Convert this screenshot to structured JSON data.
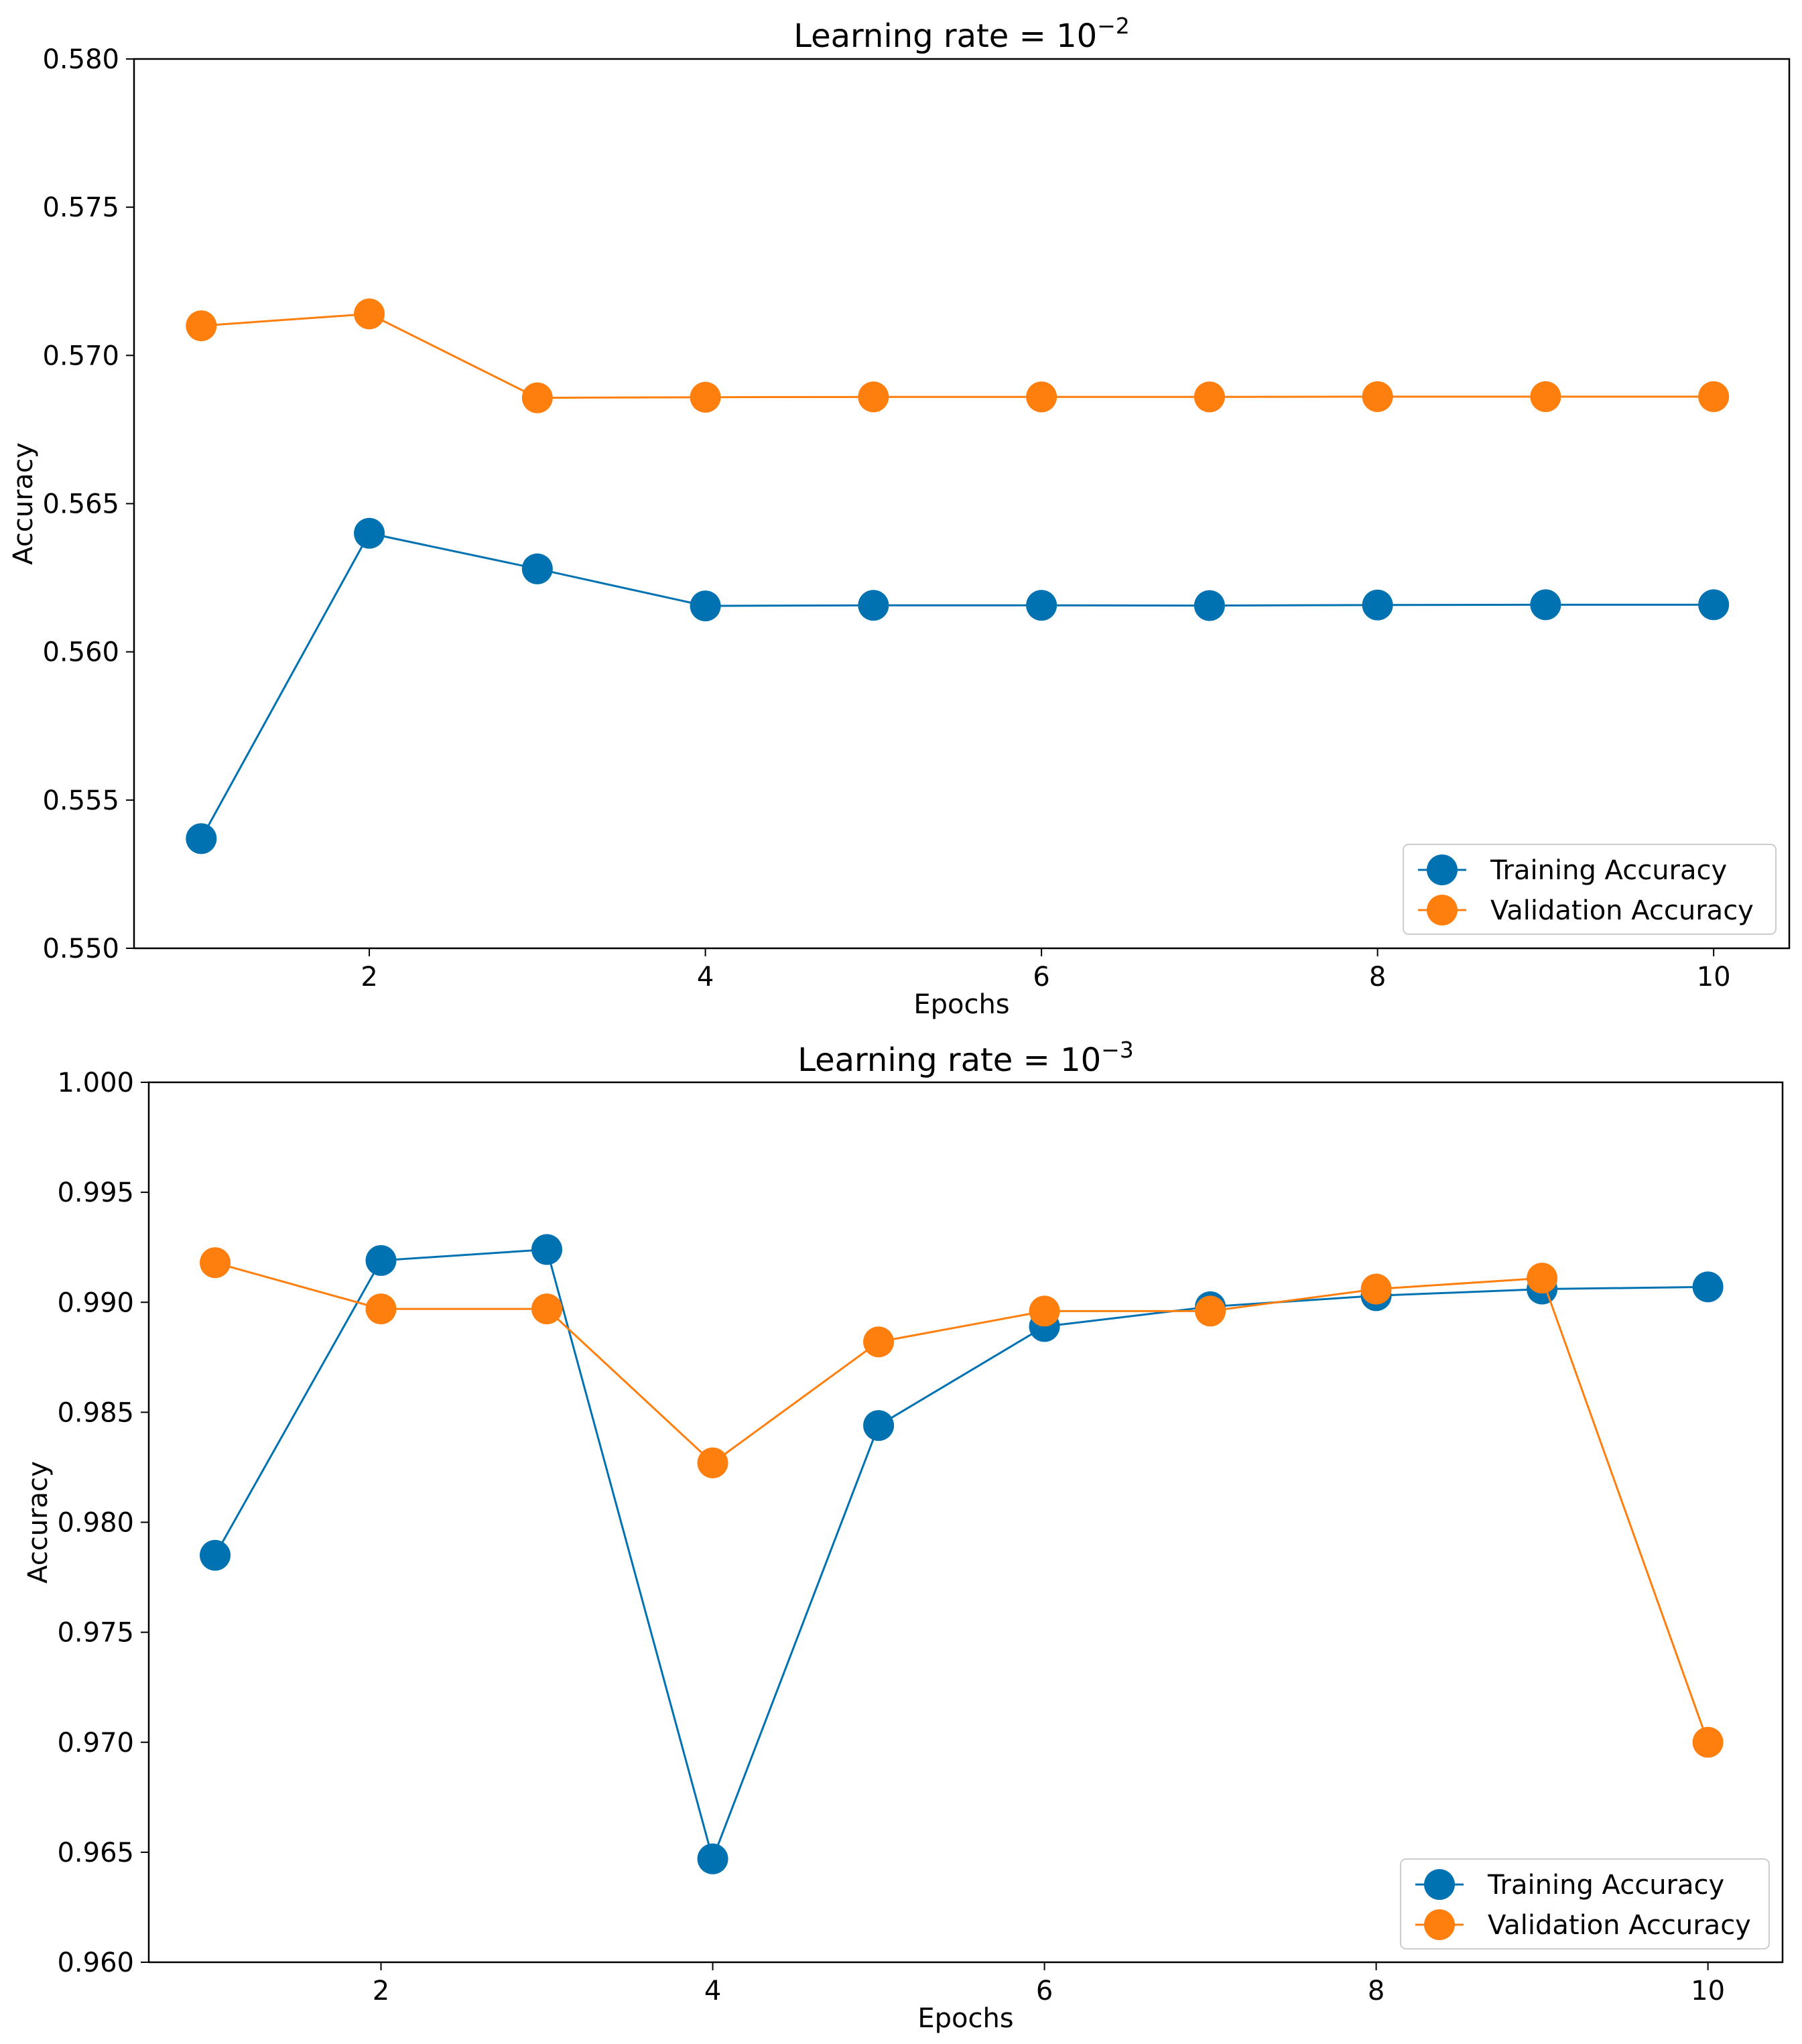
{
  "chart_data": [
    {
      "type": "line",
      "title": {
        "prefix": "Learning rate = 10",
        "exponent": "−2"
      },
      "xlabel": "Epochs",
      "ylabel": "Accuracy",
      "xlim": [
        0.6,
        10.45
      ],
      "ylim": [
        0.55,
        0.58
      ],
      "xticks": [
        2,
        4,
        6,
        8,
        10
      ],
      "xtick_labels": [
        "2",
        "4",
        "6",
        "8",
        "10"
      ],
      "yticks": [
        0.55,
        0.555,
        0.56,
        0.565,
        0.57,
        0.575,
        0.58
      ],
      "ytick_labels": [
        "0.550",
        "0.555",
        "0.560",
        "0.565",
        "0.570",
        "0.575",
        "0.580"
      ],
      "legend_position": "lower right",
      "x": [
        1,
        2,
        3,
        4,
        5,
        6,
        7,
        8,
        9,
        10
      ],
      "series": [
        {
          "name": "Training Accuracy",
          "color": "#0072B2",
          "values": [
            0.5537,
            0.564,
            0.5628,
            0.56155,
            0.56157,
            0.56157,
            0.56156,
            0.56158,
            0.56159,
            0.56159
          ]
        },
        {
          "name": "Validation Accuracy",
          "color": "#FF7F0E",
          "values": [
            0.571,
            0.5714,
            0.56857,
            0.56859,
            0.5686,
            0.5686,
            0.5686,
            0.56861,
            0.56861,
            0.56861
          ]
        }
      ]
    },
    {
      "type": "line",
      "title": {
        "prefix": "Learning rate = 10",
        "exponent": "−3"
      },
      "xlabel": "Epochs",
      "ylabel": "Accuracy",
      "xlim": [
        0.6,
        10.45
      ],
      "ylim": [
        0.96,
        1.0
      ],
      "xticks": [
        2,
        4,
        6,
        8,
        10
      ],
      "xtick_labels": [
        "2",
        "4",
        "6",
        "8",
        "10"
      ],
      "yticks": [
        0.96,
        0.965,
        0.97,
        0.975,
        0.98,
        0.985,
        0.99,
        0.995,
        1.0
      ],
      "ytick_labels": [
        "0.960",
        "0.965",
        "0.970",
        "0.975",
        "0.980",
        "0.985",
        "0.990",
        "0.995",
        "1.000"
      ],
      "legend_position": "lower right",
      "x": [
        1,
        2,
        3,
        4,
        5,
        6,
        7,
        8,
        9,
        10
      ],
      "series": [
        {
          "name": "Training Accuracy",
          "color": "#0072B2",
          "values": [
            0.9785,
            0.9919,
            0.9924,
            0.9647,
            0.9844,
            0.9889,
            0.9898,
            0.9903,
            0.9906,
            0.9907
          ]
        },
        {
          "name": "Validation Accuracy",
          "color": "#FF7F0E",
          "values": [
            0.9918,
            0.9897,
            0.9897,
            0.9827,
            0.9882,
            0.9896,
            0.9896,
            0.9906,
            0.9911,
            0.97
          ]
        }
      ]
    }
  ]
}
